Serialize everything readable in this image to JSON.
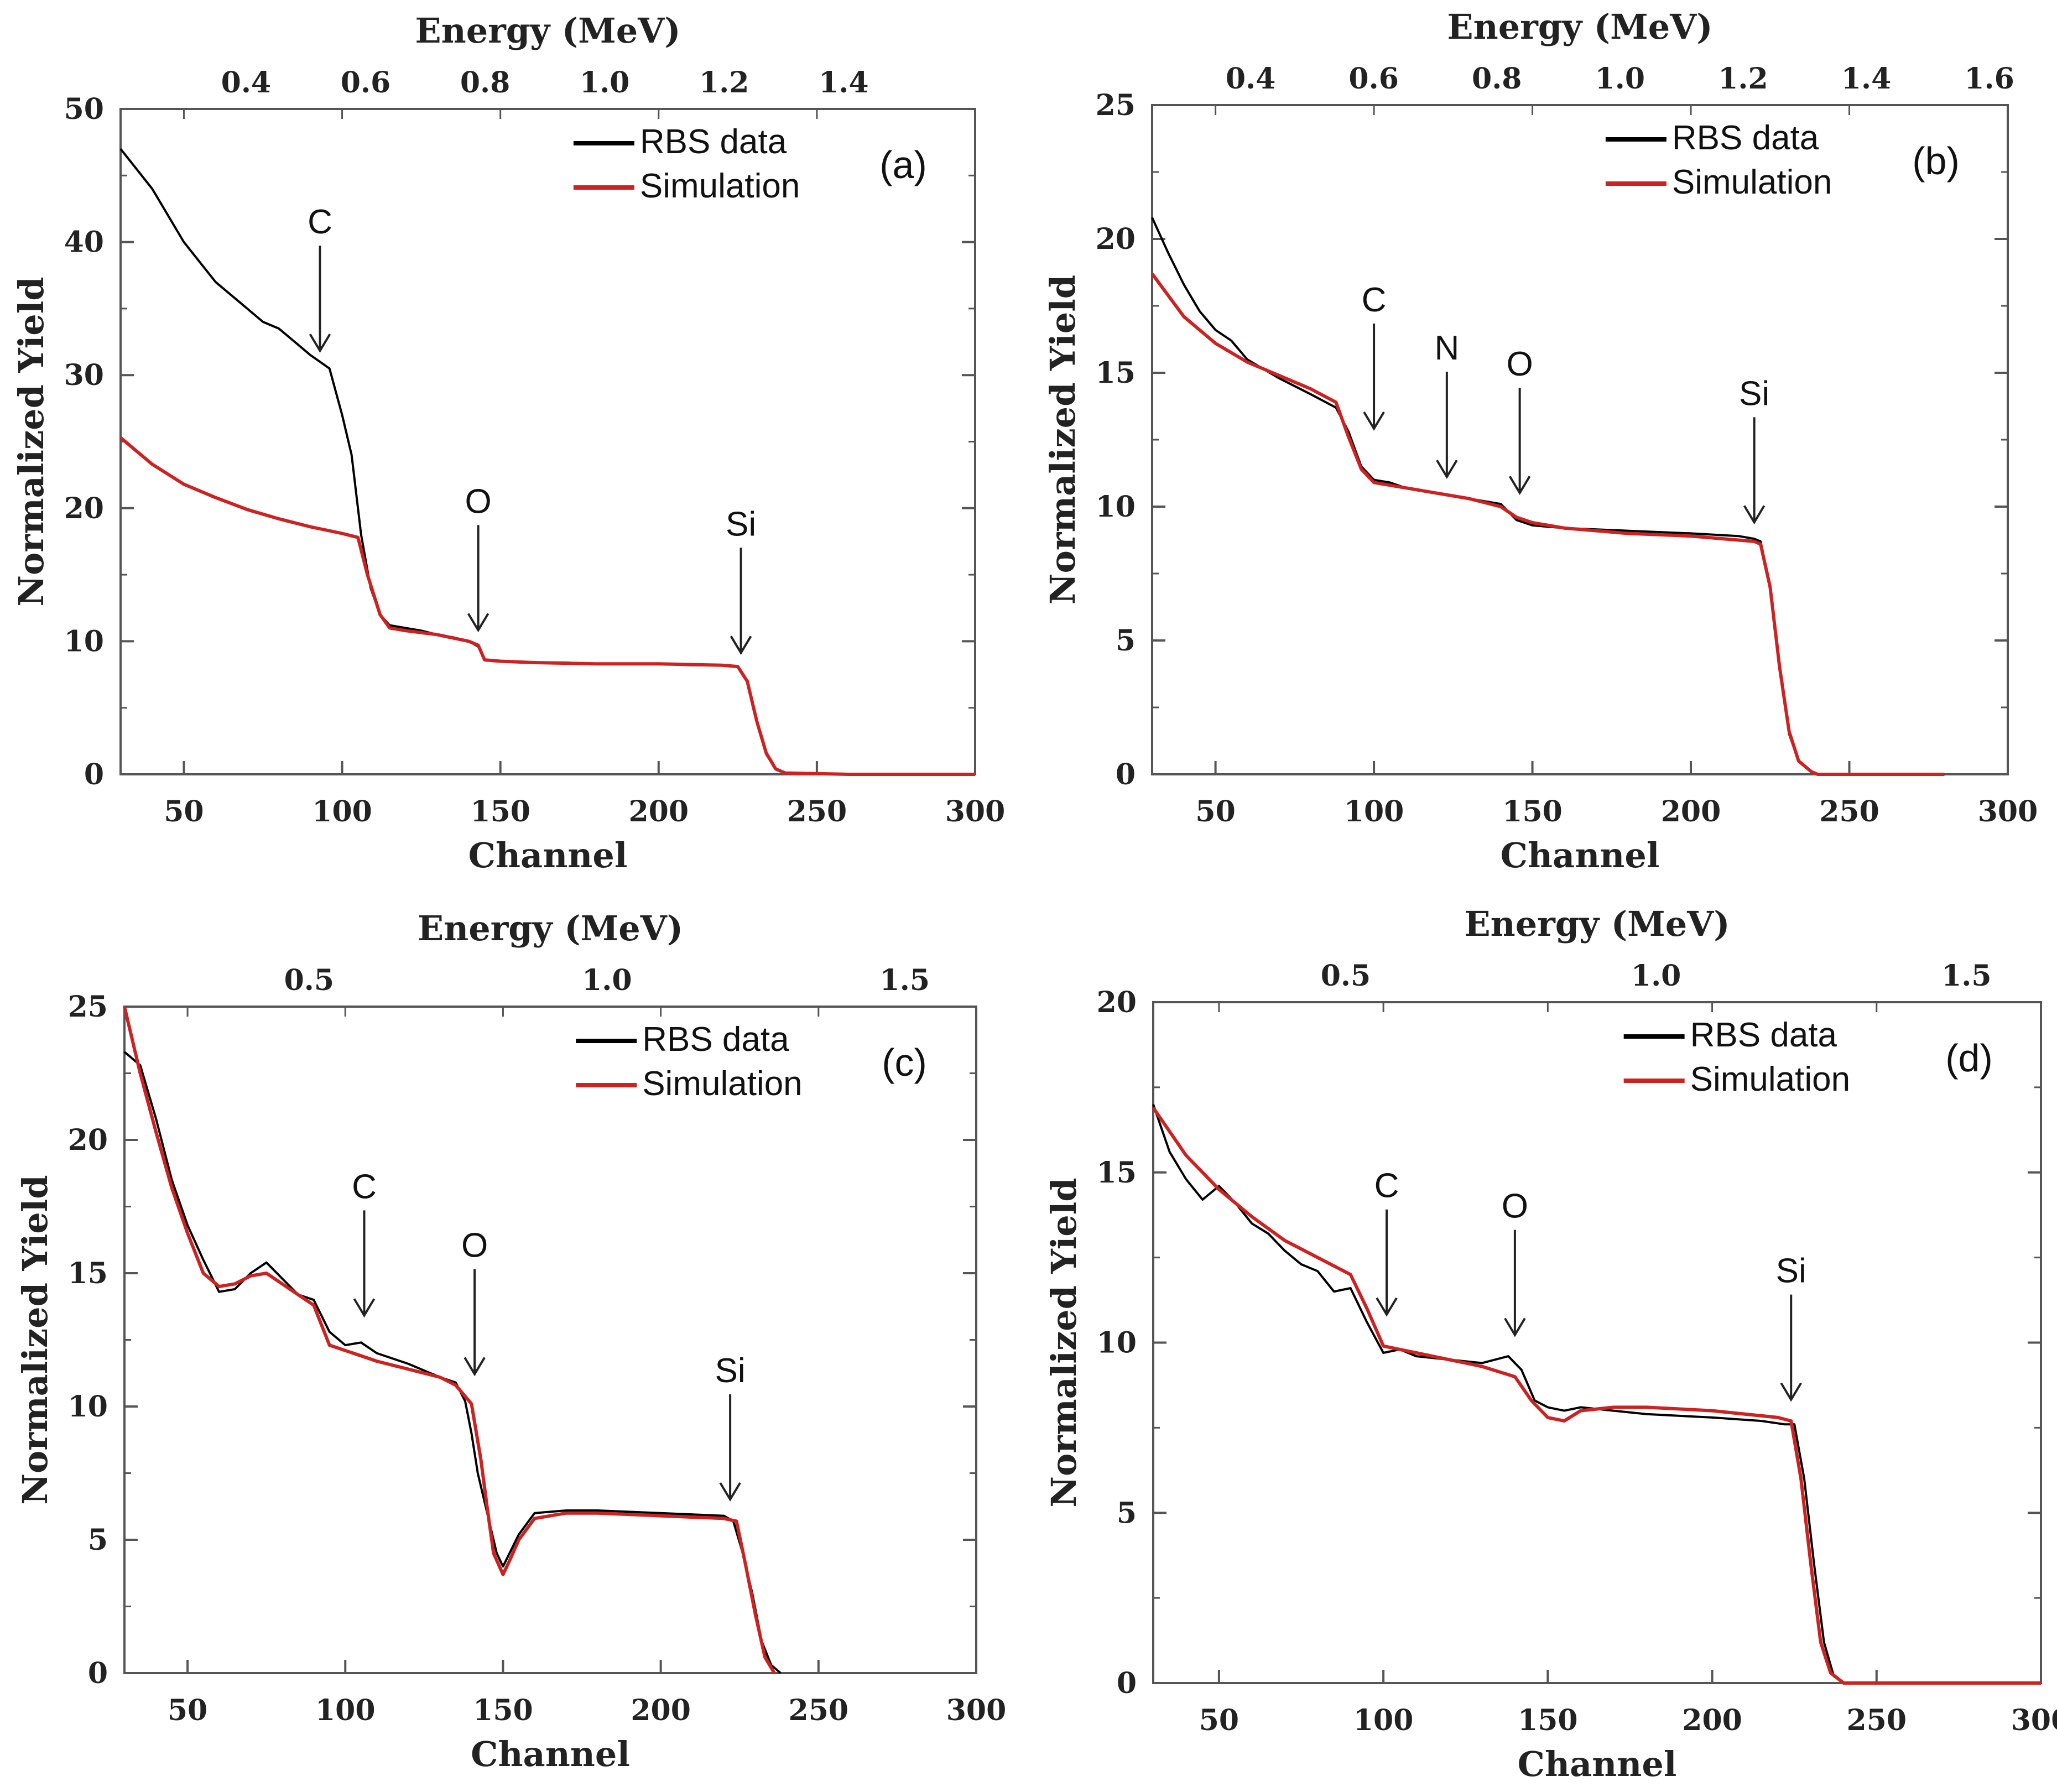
{
  "chart_data": [
    {
      "type": "line",
      "panel_label": "(a)",
      "title": "",
      "top_xlabel": "Energy (MeV)",
      "top_ticks": [
        "0.4",
        "0.6",
        "0.8",
        "1.0",
        "1.2",
        "1.4"
      ],
      "top_tick_values": [
        0.4,
        0.6,
        0.8,
        1.0,
        1.2,
        1.4
      ],
      "top_xlim": [
        0.19,
        1.62
      ],
      "xlabel": "Channel",
      "ylabel": "Normalized Yield",
      "xlim": [
        30,
        300
      ],
      "ylim": [
        0,
        50
      ],
      "x_ticks": [
        "50",
        "100",
        "150",
        "200",
        "250",
        "300"
      ],
      "x_tick_values": [
        50,
        100,
        150,
        200,
        250,
        300
      ],
      "y_ticks": [
        "0",
        "10",
        "20",
        "30",
        "40",
        "50"
      ],
      "y_tick_values": [
        0,
        10,
        20,
        30,
        40,
        50
      ],
      "legend": [
        {
          "label": "RBS data",
          "color": "#000000"
        },
        {
          "label": "Simulation",
          "color": "#cc2222"
        }
      ],
      "series": [
        {
          "name": "RBS data",
          "color": "#000000",
          "x": [
            30,
            35,
            40,
            45,
            50,
            55,
            60,
            65,
            70,
            75,
            80,
            85,
            90,
            93,
            96,
            100,
            103,
            106,
            109,
            112,
            115,
            120,
            125,
            130,
            135,
            140,
            143,
            145,
            150,
            160,
            170,
            180,
            190,
            200,
            210,
            220,
            225,
            228,
            231,
            234,
            237,
            240,
            260,
            280,
            300
          ],
          "y": [
            47,
            45.5,
            44,
            42,
            40,
            38.5,
            37,
            36,
            35,
            34,
            33.5,
            32.5,
            31.5,
            31,
            30.5,
            27,
            24,
            18,
            14,
            12,
            11.2,
            11,
            10.8,
            10.5,
            10.3,
            10,
            9.6,
            8.6,
            8.5,
            8.4,
            8.4,
            8.3,
            8.3,
            8.3,
            8.2,
            8.2,
            8.1,
            7,
            4,
            1.5,
            0.4,
            0.1,
            0,
            0,
            0
          ]
        },
        {
          "name": "Simulation",
          "color": "#cc2222",
          "x": [
            30,
            40,
            50,
            60,
            70,
            80,
            90,
            100,
            105,
            108,
            112,
            115,
            120,
            130,
            140,
            143,
            145,
            150,
            160,
            180,
            200,
            220,
            225,
            228,
            231,
            234,
            237,
            240,
            260,
            280,
            300
          ],
          "y": [
            25.3,
            23.3,
            21.8,
            20.8,
            19.9,
            19.2,
            18.6,
            18.1,
            17.8,
            15,
            12,
            11,
            10.8,
            10.5,
            10,
            9.7,
            8.6,
            8.5,
            8.4,
            8.3,
            8.3,
            8.2,
            8.1,
            7,
            4,
            1.6,
            0.4,
            0.1,
            0,
            0,
            0
          ]
        }
      ],
      "annotations": [
        {
          "label": "C",
          "x": 93,
          "y": 31
        },
        {
          "label": "O",
          "x": 143,
          "y": 10
        },
        {
          "label": "Si",
          "x": 226,
          "y": 8.3
        }
      ]
    },
    {
      "type": "line",
      "panel_label": "(b)",
      "title": "",
      "top_xlabel": "Energy (MeV)",
      "top_ticks": [
        "0.4",
        "0.6",
        "0.8",
        "1.0",
        "1.2",
        "1.4",
        "1.6"
      ],
      "top_tick_values": [
        0.4,
        0.6,
        0.8,
        1.0,
        1.2,
        1.4,
        1.6
      ],
      "top_xlim": [
        0.24,
        1.63
      ],
      "xlabel": "Channel",
      "ylabel": "Normalized Yield",
      "xlim": [
        30,
        300
      ],
      "ylim": [
        0,
        25
      ],
      "x_ticks": [
        "50",
        "100",
        "150",
        "200",
        "250",
        "300"
      ],
      "x_tick_values": [
        50,
        100,
        150,
        200,
        250,
        300
      ],
      "y_ticks": [
        "0",
        "5",
        "10",
        "15",
        "20",
        "25"
      ],
      "y_tick_values": [
        0,
        5,
        10,
        15,
        20,
        25
      ],
      "legend": [
        {
          "label": "RBS data",
          "color": "#000000"
        },
        {
          "label": "Simulation",
          "color": "#cc2222"
        }
      ],
      "series": [
        {
          "name": "RBS data",
          "color": "#000000",
          "x": [
            30,
            35,
            40,
            45,
            50,
            55,
            60,
            70,
            80,
            88,
            92,
            96,
            100,
            105,
            110,
            120,
            130,
            140,
            145,
            150,
            160,
            180,
            200,
            215,
            220,
            222,
            225,
            228,
            231,
            234,
            238,
            240,
            260,
            280
          ],
          "y": [
            20.8,
            19.5,
            18.3,
            17.3,
            16.6,
            16.2,
            15.5,
            14.8,
            14.2,
            13.7,
            12.8,
            11.5,
            11,
            10.9,
            10.7,
            10.5,
            10.3,
            10.1,
            9.5,
            9.3,
            9.2,
            9.1,
            9,
            8.9,
            8.8,
            8.7,
            7,
            4,
            1.5,
            0.5,
            0.1,
            0,
            0,
            0
          ]
        },
        {
          "name": "Simulation",
          "color": "#cc2222",
          "x": [
            30,
            40,
            50,
            60,
            70,
            80,
            88,
            92,
            96,
            100,
            110,
            120,
            130,
            140,
            145,
            150,
            160,
            180,
            200,
            220,
            222,
            225,
            228,
            231,
            234,
            238,
            240,
            260,
            280
          ],
          "y": [
            18.7,
            17.1,
            16.1,
            15.4,
            14.9,
            14.4,
            13.9,
            12.6,
            11.4,
            10.9,
            10.7,
            10.5,
            10.3,
            10,
            9.6,
            9.4,
            9.2,
            9,
            8.9,
            8.7,
            8.6,
            7,
            4,
            1.6,
            0.5,
            0.1,
            0,
            0,
            0
          ]
        }
      ],
      "annotations": [
        {
          "label": "C",
          "x": 100,
          "y": 12.5
        },
        {
          "label": "N",
          "x": 123,
          "y": 10.7
        },
        {
          "label": "O",
          "x": 146,
          "y": 10.1
        },
        {
          "label": "Si",
          "x": 220,
          "y": 9
        }
      ]
    },
    {
      "type": "line",
      "panel_label": "(c)",
      "title": "",
      "top_xlabel": "Energy (MeV)",
      "top_ticks": [
        "0.5",
        "1.0",
        "1.5"
      ],
      "top_tick_values": [
        0.5,
        1.0,
        1.5
      ],
      "top_xlim": [
        0.19,
        1.62
      ],
      "xlabel": "Channel",
      "ylabel": "Normalized Yield",
      "xlim": [
        30,
        300
      ],
      "ylim": [
        0,
        25
      ],
      "x_ticks": [
        "50",
        "100",
        "150",
        "200",
        "250",
        "300"
      ],
      "x_tick_values": [
        50,
        100,
        150,
        200,
        250,
        300
      ],
      "y_ticks": [
        "0",
        "5",
        "10",
        "15",
        "20",
        "25"
      ],
      "y_tick_values": [
        0,
        5,
        10,
        15,
        20,
        25
      ],
      "legend": [
        {
          "label": "RBS data",
          "color": "#000000"
        },
        {
          "label": "Simulation",
          "color": "#cc2222"
        }
      ],
      "series": [
        {
          "name": "RBS data",
          "color": "#000000",
          "x": [
            30,
            35,
            40,
            45,
            50,
            55,
            60,
            65,
            70,
            75,
            80,
            85,
            90,
            95,
            100,
            105,
            110,
            120,
            130,
            135,
            138,
            140,
            142,
            145,
            148,
            150,
            155,
            160,
            170,
            180,
            200,
            220,
            223,
            226,
            229,
            232,
            235,
            238
          ],
          "y": [
            23.3,
            22.8,
            20.8,
            18.5,
            16.8,
            15.5,
            14.3,
            14.4,
            15,
            15.4,
            14.8,
            14.2,
            14,
            12.8,
            12.3,
            12.4,
            12,
            11.6,
            11.1,
            10.9,
            10.2,
            9,
            7.5,
            6,
            4.5,
            4,
            5.2,
            6,
            6.1,
            6.1,
            6,
            5.9,
            5.7,
            4.5,
            3,
            1.2,
            0.3,
            0
          ]
        },
        {
          "name": "Simulation",
          "color": "#cc2222",
          "x": [
            30,
            35,
            40,
            45,
            50,
            55,
            60,
            65,
            70,
            75,
            80,
            85,
            90,
            95,
            100,
            105,
            110,
            120,
            130,
            135,
            140,
            143,
            145,
            147,
            150,
            152,
            155,
            160,
            170,
            180,
            200,
            220,
            224,
            227,
            230,
            233,
            236
          ],
          "y": [
            25,
            22.5,
            20.3,
            18.2,
            16.5,
            15,
            14.5,
            14.6,
            14.9,
            15,
            14.6,
            14.2,
            13.8,
            12.3,
            12.1,
            11.9,
            11.7,
            11.4,
            11.1,
            10.8,
            10.1,
            8,
            6.2,
            4.5,
            3.7,
            4.2,
            5,
            5.8,
            6,
            6,
            5.9,
            5.8,
            5.7,
            4,
            2.2,
            0.6,
            0
          ]
        }
      ],
      "annotations": [
        {
          "label": "C",
          "x": 106,
          "y": 13
        },
        {
          "label": "O",
          "x": 141,
          "y": 10.8
        },
        {
          "label": "Si",
          "x": 222,
          "y": 6.1
        }
      ]
    },
    {
      "type": "line",
      "panel_label": "(d)",
      "title": "",
      "top_xlabel": "Energy (MeV)",
      "top_ticks": [
        "0.5",
        "1.0",
        "1.5"
      ],
      "top_tick_values": [
        0.5,
        1.0,
        1.5
      ],
      "top_xlim": [
        0.19,
        1.62
      ],
      "xlabel": "Channel",
      "ylabel": "Normalized Yield",
      "xlim": [
        30,
        300
      ],
      "ylim": [
        0,
        20
      ],
      "x_ticks": [
        "50",
        "100",
        "150",
        "200",
        "250",
        "300"
      ],
      "x_tick_values": [
        50,
        100,
        150,
        200,
        250,
        300
      ],
      "y_ticks": [
        "0",
        "5",
        "10",
        "15",
        "20"
      ],
      "y_tick_values": [
        0,
        5,
        10,
        15,
        20
      ],
      "legend": [
        {
          "label": "RBS data",
          "color": "#000000"
        },
        {
          "label": "Simulation",
          "color": "#cc2222"
        }
      ],
      "series": [
        {
          "name": "RBS data",
          "color": "#000000",
          "x": [
            30,
            35,
            40,
            45,
            50,
            55,
            60,
            65,
            70,
            75,
            80,
            85,
            90,
            95,
            100,
            105,
            110,
            120,
            130,
            138,
            142,
            146,
            150,
            155,
            160,
            170,
            180,
            200,
            215,
            222,
            225,
            228,
            231,
            234,
            237,
            240,
            260,
            280,
            300
          ],
          "y": [
            17,
            15.6,
            14.8,
            14.2,
            14.6,
            14.1,
            13.5,
            13.2,
            12.7,
            12.3,
            12.1,
            11.5,
            11.6,
            10.6,
            9.7,
            9.8,
            9.6,
            9.5,
            9.4,
            9.6,
            9.2,
            8.3,
            8.1,
            8,
            8.1,
            8,
            7.9,
            7.8,
            7.7,
            7.6,
            7.6,
            6,
            3.5,
            1.2,
            0.2,
            0,
            0,
            0,
            0
          ]
        },
        {
          "name": "Simulation",
          "color": "#cc2222",
          "x": [
            30,
            40,
            50,
            60,
            70,
            80,
            90,
            95,
            100,
            110,
            120,
            130,
            140,
            145,
            150,
            155,
            160,
            170,
            180,
            200,
            220,
            224,
            227,
            230,
            233,
            236,
            240,
            260,
            280,
            300
          ],
          "y": [
            16.9,
            15.5,
            14.5,
            13.7,
            13,
            12.5,
            12,
            11,
            9.9,
            9.7,
            9.5,
            9.3,
            9,
            8.3,
            7.8,
            7.7,
            8,
            8.1,
            8.1,
            8,
            7.8,
            7.7,
            6,
            3.5,
            1.2,
            0.3,
            0,
            0,
            0,
            0
          ]
        }
      ],
      "annotations": [
        {
          "label": "C",
          "x": 101,
          "y": 10.5
        },
        {
          "label": "O",
          "x": 140,
          "y": 9.9
        },
        {
          "label": "Si",
          "x": 224,
          "y": 8
        }
      ]
    }
  ],
  "colors": {
    "data": "#000000",
    "simulation": "#cc2222",
    "frame": "#555555"
  }
}
